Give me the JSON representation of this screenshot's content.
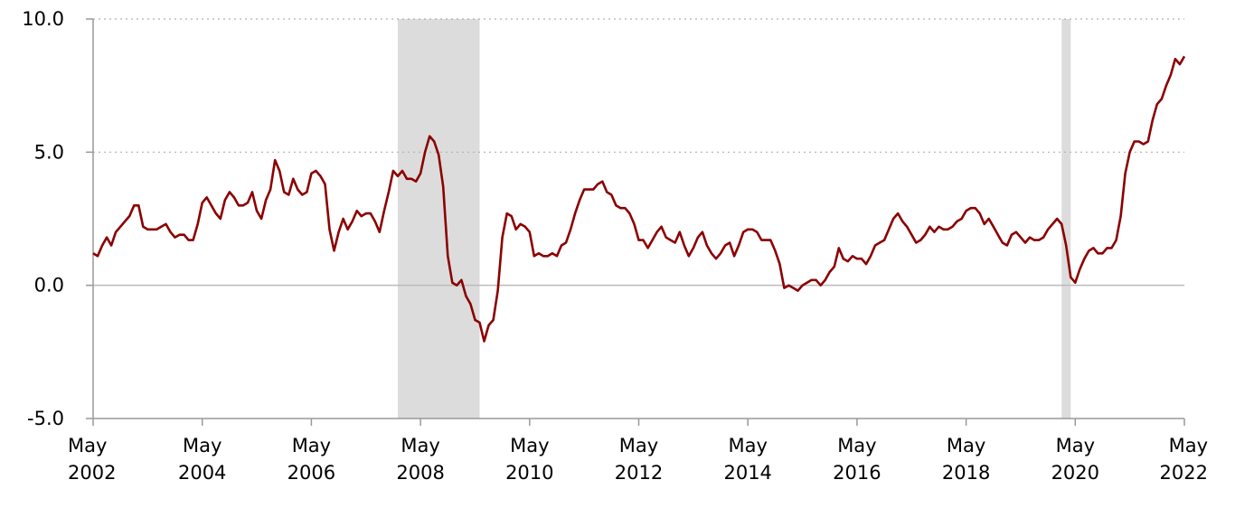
{
  "chart_data": {
    "type": "line",
    "title": "",
    "xlabel": "",
    "ylabel": "",
    "x_range": [
      "2002-05",
      "2022-05"
    ],
    "ylim": [
      -5.0,
      10.0
    ],
    "y_ticks": [
      {
        "value": 10.0,
        "label": "10.0"
      },
      {
        "value": 5.0,
        "label": "5.0"
      },
      {
        "value": 0.0,
        "label": "0.0"
      },
      {
        "value": -5.0,
        "label": "-5.0"
      }
    ],
    "x_ticks": [
      {
        "date": "2002-05",
        "label": [
          "May",
          "2002"
        ]
      },
      {
        "date": "2004-05",
        "label": [
          "May",
          "2004"
        ]
      },
      {
        "date": "2006-05",
        "label": [
          "May",
          "2006"
        ]
      },
      {
        "date": "2008-05",
        "label": [
          "May",
          "2008"
        ]
      },
      {
        "date": "2010-05",
        "label": [
          "May",
          "2010"
        ]
      },
      {
        "date": "2012-05",
        "label": [
          "May",
          "2012"
        ]
      },
      {
        "date": "2014-05",
        "label": [
          "May",
          "2014"
        ]
      },
      {
        "date": "2016-05",
        "label": [
          "May",
          "2016"
        ]
      },
      {
        "date": "2018-05",
        "label": [
          "May",
          "2018"
        ]
      },
      {
        "date": "2020-05",
        "label": [
          "May",
          "2020"
        ]
      },
      {
        "date": "2022-05",
        "label": [
          "May",
          "2022"
        ]
      }
    ],
    "grid": "dotted horizontal at y ticks; solid line at 0",
    "shaded_periods": [
      {
        "start": "2007-12",
        "end": "2009-06"
      },
      {
        "start": "2020-02",
        "end": "2020-04"
      }
    ],
    "series": [
      {
        "color": "#8b0000",
        "x": [
          "2002-05",
          "2002-06",
          "2002-07",
          "2002-08",
          "2002-09",
          "2002-10",
          "2002-11",
          "2002-12",
          "2003-01",
          "2003-02",
          "2003-03",
          "2003-04",
          "2003-05",
          "2003-06",
          "2003-07",
          "2003-08",
          "2003-09",
          "2003-10",
          "2003-11",
          "2003-12",
          "2004-01",
          "2004-02",
          "2004-03",
          "2004-04",
          "2004-05",
          "2004-06",
          "2004-07",
          "2004-08",
          "2004-09",
          "2004-10",
          "2004-11",
          "2004-12",
          "2005-01",
          "2005-02",
          "2005-03",
          "2005-04",
          "2005-05",
          "2005-06",
          "2005-07",
          "2005-08",
          "2005-09",
          "2005-10",
          "2005-11",
          "2005-12",
          "2006-01",
          "2006-02",
          "2006-03",
          "2006-04",
          "2006-05",
          "2006-06",
          "2006-07",
          "2006-08",
          "2006-09",
          "2006-10",
          "2006-11",
          "2006-12",
          "2007-01",
          "2007-02",
          "2007-03",
          "2007-04",
          "2007-05",
          "2007-06",
          "2007-07",
          "2007-08",
          "2007-09",
          "2007-10",
          "2007-11",
          "2007-12",
          "2008-01",
          "2008-02",
          "2008-03",
          "2008-04",
          "2008-05",
          "2008-06",
          "2008-07",
          "2008-08",
          "2008-09",
          "2008-10",
          "2008-11",
          "2008-12",
          "2009-01",
          "2009-02",
          "2009-03",
          "2009-04",
          "2009-05",
          "2009-06",
          "2009-07",
          "2009-08",
          "2009-09",
          "2009-10",
          "2009-11",
          "2009-12",
          "2010-01",
          "2010-02",
          "2010-03",
          "2010-04",
          "2010-05",
          "2010-06",
          "2010-07",
          "2010-08",
          "2010-09",
          "2010-10",
          "2010-11",
          "2010-12",
          "2011-01",
          "2011-02",
          "2011-03",
          "2011-04",
          "2011-05",
          "2011-06",
          "2011-07",
          "2011-08",
          "2011-09",
          "2011-10",
          "2011-11",
          "2011-12",
          "2012-01",
          "2012-02",
          "2012-03",
          "2012-04",
          "2012-05",
          "2012-06",
          "2012-07",
          "2012-08",
          "2012-09",
          "2012-10",
          "2012-11",
          "2012-12",
          "2013-01",
          "2013-02",
          "2013-03",
          "2013-04",
          "2013-05",
          "2013-06",
          "2013-07",
          "2013-08",
          "2013-09",
          "2013-10",
          "2013-11",
          "2013-12",
          "2014-01",
          "2014-02",
          "2014-03",
          "2014-04",
          "2014-05",
          "2014-06",
          "2014-07",
          "2014-08",
          "2014-09",
          "2014-10",
          "2014-11",
          "2014-12",
          "2015-01",
          "2015-02",
          "2015-03",
          "2015-04",
          "2015-05",
          "2015-06",
          "2015-07",
          "2015-08",
          "2015-09",
          "2015-10",
          "2015-11",
          "2015-12",
          "2016-01",
          "2016-02",
          "2016-03",
          "2016-04",
          "2016-05",
          "2016-06",
          "2016-07",
          "2016-08",
          "2016-09",
          "2016-10",
          "2016-11",
          "2016-12",
          "2017-01",
          "2017-02",
          "2017-03",
          "2017-04",
          "2017-05",
          "2017-06",
          "2017-07",
          "2017-08",
          "2017-09",
          "2017-10",
          "2017-11",
          "2017-12",
          "2018-01",
          "2018-02",
          "2018-03",
          "2018-04",
          "2018-05",
          "2018-06",
          "2018-07",
          "2018-08",
          "2018-09",
          "2018-10",
          "2018-11",
          "2018-12",
          "2019-01",
          "2019-02",
          "2019-03",
          "2019-04",
          "2019-05",
          "2019-06",
          "2019-07",
          "2019-08",
          "2019-09",
          "2019-10",
          "2019-11",
          "2019-12",
          "2020-01",
          "2020-02",
          "2020-03",
          "2020-04",
          "2020-05",
          "2020-06",
          "2020-07",
          "2020-08",
          "2020-09",
          "2020-10",
          "2020-11",
          "2020-12",
          "2021-01",
          "2021-02",
          "2021-03",
          "2021-04",
          "2021-05",
          "2021-06",
          "2021-07",
          "2021-08",
          "2021-09",
          "2021-10",
          "2021-11",
          "2021-12",
          "2022-01",
          "2022-02",
          "2022-03",
          "2022-04",
          "2022-05"
        ],
        "values": [
          1.2,
          1.1,
          1.5,
          1.8,
          1.5,
          2.0,
          2.2,
          2.4,
          2.6,
          3.0,
          3.0,
          2.2,
          2.1,
          2.1,
          2.1,
          2.2,
          2.3,
          2.0,
          1.8,
          1.9,
          1.9,
          1.7,
          1.7,
          2.3,
          3.1,
          3.3,
          3.0,
          2.7,
          2.5,
          3.2,
          3.5,
          3.3,
          3.0,
          3.0,
          3.1,
          3.5,
          2.8,
          2.5,
          3.2,
          3.6,
          4.7,
          4.3,
          3.5,
          3.4,
          4.0,
          3.6,
          3.4,
          3.5,
          4.2,
          4.3,
          4.1,
          3.8,
          2.1,
          1.3,
          2.0,
          2.5,
          2.1,
          2.4,
          2.8,
          2.6,
          2.7,
          2.7,
          2.4,
          2.0,
          2.8,
          3.5,
          4.3,
          4.1,
          4.3,
          4.0,
          4.0,
          3.9,
          4.2,
          5.0,
          5.6,
          5.4,
          4.9,
          3.7,
          1.1,
          0.1,
          0.0,
          0.2,
          -0.4,
          -0.7,
          -1.3,
          -1.4,
          -2.1,
          -1.5,
          -1.3,
          -0.2,
          1.8,
          2.7,
          2.6,
          2.1,
          2.3,
          2.2,
          2.0,
          1.1,
          1.2,
          1.1,
          1.1,
          1.2,
          1.1,
          1.5,
          1.6,
          2.1,
          2.7,
          3.2,
          3.6,
          3.6,
          3.6,
          3.8,
          3.9,
          3.5,
          3.4,
          3.0,
          2.9,
          2.9,
          2.7,
          2.3,
          1.7,
          1.7,
          1.4,
          1.7,
          2.0,
          2.2,
          1.8,
          1.7,
          1.6,
          2.0,
          1.5,
          1.1,
          1.4,
          1.8,
          2.0,
          1.5,
          1.2,
          1.0,
          1.2,
          1.5,
          1.6,
          1.1,
          1.5,
          2.0,
          2.1,
          2.1,
          2.0,
          1.7,
          1.7,
          1.7,
          1.3,
          0.8,
          -0.1,
          0.0,
          -0.1,
          -0.2,
          0.0,
          0.1,
          0.2,
          0.2,
          0.0,
          0.2,
          0.5,
          0.7,
          1.4,
          1.0,
          0.9,
          1.1,
          1.0,
          1.0,
          0.8,
          1.1,
          1.5,
          1.6,
          1.7,
          2.1,
          2.5,
          2.7,
          2.4,
          2.2,
          1.9,
          1.6,
          1.7,
          1.9,
          2.2,
          2.0,
          2.2,
          2.1,
          2.1,
          2.2,
          2.4,
          2.5,
          2.8,
          2.9,
          2.9,
          2.7,
          2.3,
          2.5,
          2.2,
          1.9,
          1.6,
          1.5,
          1.9,
          2.0,
          1.8,
          1.6,
          1.8,
          1.7,
          1.7,
          1.8,
          2.1,
          2.3,
          2.5,
          2.3,
          1.5,
          0.3,
          0.1,
          0.6,
          1.0,
          1.3,
          1.4,
          1.2,
          1.2,
          1.4,
          1.4,
          1.7,
          2.6,
          4.2,
          5.0,
          5.4,
          5.4,
          5.3,
          5.4,
          6.2,
          6.8,
          7.0,
          7.5,
          7.9,
          8.5,
          8.3,
          8.6
        ]
      }
    ]
  }
}
